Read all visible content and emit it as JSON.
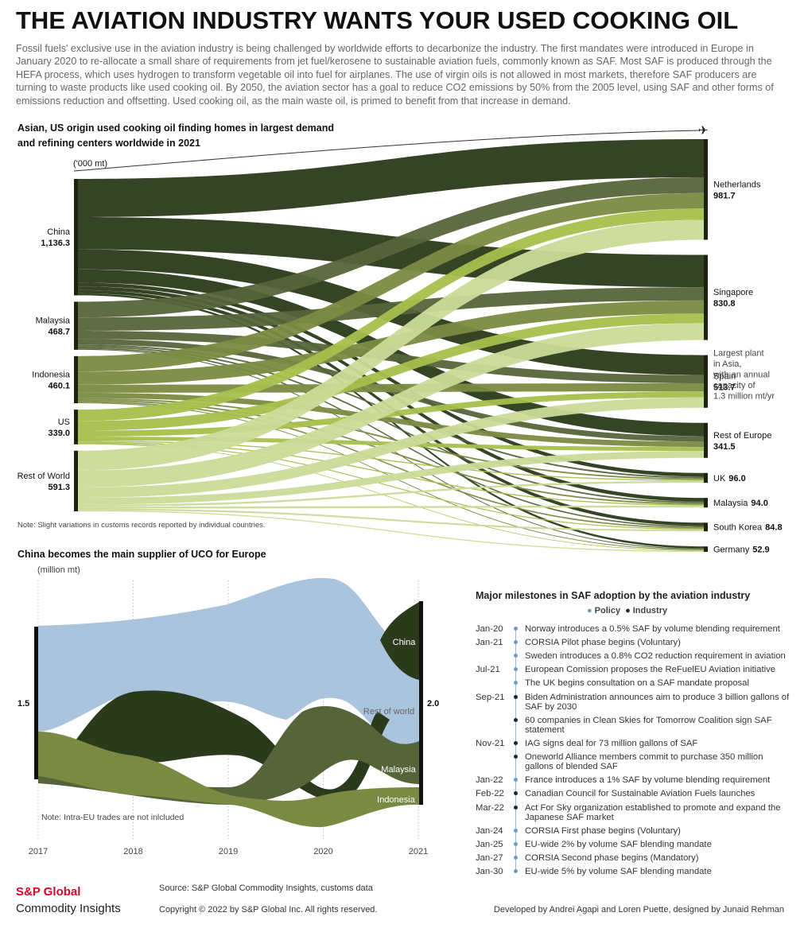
{
  "header": {
    "title": "THE AVIATION INDUSTRY WANTS YOUR USED COOKING OIL",
    "intro": "Fossil fuels' exclusive use in the aviation industry is being challenged by worldwide efforts to decarbonize the industry. The first mandates were introduced in Europe in January 2020 to re-allocate a small share of requirements from jet fuel/kerosene to sustainable aviation fuels, commonly known as SAF. Most SAF is produced through the HEFA process, which uses hydrogen to transform vegetable oil into fuel for airplanes. The use of virgin oils is not allowed in most markets, therefore SAF producers are turning to waste products like used cooking oil. By 2050, the aviation sector has a goal to reduce CO2 emissions by 50% from the 2005 level, using SAF and other forms of emissions reduction and offsetting. Used cooking oil, as the main waste oil, is primed to benefit from that increase in demand."
  },
  "sankey": {
    "type": "sankey",
    "title": [
      "Asian, US origin used cooking oil finding homes in largest demand",
      "and refining centers worldwide in 2021"
    ],
    "unit": "('000 mt)",
    "sources": [
      {
        "name": "China",
        "value": {
          "value": 1136.3,
          "label": "1,136.3"
        },
        "color": "#2b3a1a"
      },
      {
        "name": "Malaysia",
        "value": 468.7,
        "color": "#56643a"
      },
      {
        "name": "Indonesia",
        "value": 460.1,
        "color": "#7b8a42"
      },
      {
        "name": "US",
        "value": {
          "value": 339,
          "label": "339.0"
        },
        "color": "#a8bf4c"
      },
      {
        "name": "Rest of World",
        "value": 591.3,
        "color": "#cbdb98"
      }
    ],
    "targets": [
      {
        "name": "Netherlands",
        "value": 981.7
      },
      {
        "name": "Singapore",
        "value": 830.8
      },
      {
        "name": "Spain",
        "value": 513.7
      },
      {
        "name": "Rest of Europe",
        "value": 341.5
      },
      {
        "name": "UK",
        "value": {
          "value": 96,
          "label": "96.0"
        }
      },
      {
        "name": "Malaysia",
        "value": {
          "value": 94,
          "label": "94.0"
        }
      },
      {
        "name": "South Korea",
        "value": 84.8
      },
      {
        "name": "Germany",
        "value": 52.9
      }
    ],
    "annotation": [
      "Largest plant",
      "in Asia,",
      "with an annual",
      "capacity of",
      "1.3 million mt/yr"
    ],
    "note": "Note: Slight variations in customs records reported by individual countries."
  },
  "stream": {
    "type": "stream",
    "title": "China becomes the main supplier of UCO for Europe",
    "unit": "(million mt)",
    "years": [
      2017,
      2018,
      2019,
      2020,
      2021
    ],
    "start": 1.5,
    "end": {
      "value": 2,
      "label": "2.0"
    },
    "layers": [
      "China",
      "Rest of world",
      "Malaysia",
      "Indonesia"
    ],
    "note": "Note: Intra-EU trades are not inlcluded"
  },
  "timeline": {
    "title": "Major milestones in SAF adoption by the aviation industry",
    "legend": [
      {
        "label": "Policy",
        "color": "#6a9cc8"
      },
      {
        "label": "Industry",
        "color": "#1c2638"
      }
    ],
    "items": [
      {
        "date": "Jan-20",
        "kind": "Policy",
        "text": "Norway introduces a 0.5% SAF by volume blending requirement"
      },
      {
        "date": "Jan-21",
        "kind": "Policy",
        "text": "CORSIA Pilot phase begins (Voluntary)"
      },
      {
        "kind": "Policy",
        "text": "Sweden introduces a 0.8% CO2 reduction requirement in aviation"
      },
      {
        "date": "Jul-21",
        "kind": "Policy",
        "text": "European Comission proposes the ReFuelEU Aviation initiative"
      },
      {
        "kind": "Policy",
        "text": "The UK begins consultation on a SAF mandate proposal"
      },
      {
        "date": "Sep-21",
        "kind": "Industry",
        "text": "Biden Administration announces aim to produce 3 billion gallons of SAF by 2030"
      },
      {
        "kind": "Industry",
        "text": "60 companies in Clean Skies for Tomorrow Coalition sign SAF statement"
      },
      {
        "date": "Nov-21",
        "kind": "Industry",
        "text": "IAG signs deal for 73 million gallons of SAF"
      },
      {
        "kind": "Industry",
        "text": "Oneworld Alliance members commit to purchase 350 million gallons of blended SAF"
      },
      {
        "date": "Jan-22",
        "kind": "Policy",
        "text": "France introduces a 1% SAF by volume blending requirement"
      },
      {
        "date": "Feb-22",
        "kind": "Industry",
        "text": "Canadian Council for Sustainable Aviation Fuels launches"
      },
      {
        "date": "Mar-22",
        "kind": "Industry",
        "text": "Act For Sky organization established to promote and expand the Japanese SAF market"
      },
      {
        "date": "Jan-24",
        "kind": "Policy",
        "text": "CORSIA First phase begins (Voluntary)"
      },
      {
        "date": "Jan-25",
        "kind": "Policy",
        "text": "EU-wide 2% by volume SAF blending mandate"
      },
      {
        "date": "Jan-27",
        "kind": "Policy",
        "text": "CORSIA Second phase begins (Mandatory)"
      },
      {
        "date": "Jan-30",
        "kind": "Policy",
        "text": "EU-wide 5% by volume SAF blending mandate"
      }
    ]
  },
  "footer": {
    "brand": "S&P Global",
    "sub": "Commodity Insights",
    "source": "Source: S&P Global Commodity Insights, customs data",
    "copyright": "Copyright © 2022 by S&P Global Inc. All rights reserved.",
    "credits": "Developed by Andrei Agapi and Loren Puette, designed by Junaid Rehman"
  }
}
